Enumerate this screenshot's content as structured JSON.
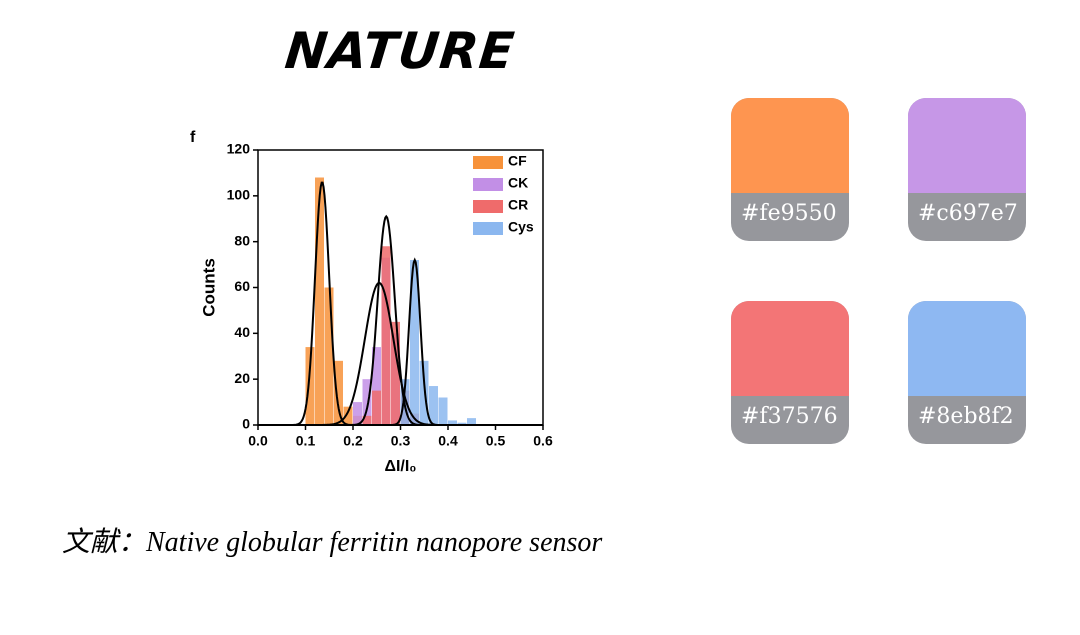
{
  "header": {
    "title": "NATURE"
  },
  "chart_data": {
    "type": "histogram",
    "panel_label": "f",
    "x_label": "ΔI/I₀",
    "y_label": "Counts",
    "xlim": [
      0,
      0.6
    ],
    "ylim": [
      0,
      120
    ],
    "xticks": [
      {
        "value": 0,
        "label": "0.0"
      },
      0.1,
      0.2,
      0.3,
      0.4,
      0.5,
      0.6
    ],
    "yticks": [
      0,
      20,
      40,
      60,
      80,
      100,
      120
    ],
    "legend": "upper right",
    "series": [
      {
        "name": "CF",
        "color": "#f7923a",
        "bins": [
          0.1,
          0.12,
          0.14,
          0.16,
          0.18,
          0.2,
          0.22
        ],
        "values": [
          34,
          108,
          60,
          28,
          8,
          4
        ],
        "fit": [
          0.135,
          106,
          0.015
        ]
      },
      {
        "name": "CK",
        "color": "#c28fe6",
        "bins": [
          0.2,
          0.22,
          0.24,
          0.26,
          0.28,
          0.3,
          0.32,
          0.34
        ],
        "values": [
          10,
          20,
          34,
          73,
          40,
          12,
          4
        ],
        "fit": [
          0.255,
          62,
          0.03
        ]
      },
      {
        "name": "CR",
        "color": "#ef6b6b",
        "bins": [
          0.22,
          0.24,
          0.26,
          0.28,
          0.3,
          0.32,
          0.34
        ],
        "values": [
          4,
          15,
          78,
          45,
          15,
          5
        ],
        "fit": [
          0.27,
          91,
          0.018
        ]
      },
      {
        "name": "Cys",
        "color": "#8bb7ef",
        "bins": [
          0.3,
          0.32,
          0.34,
          0.36,
          0.38,
          0.4,
          0.42,
          0.44,
          0.46
        ],
        "values": [
          20,
          72,
          28,
          17,
          12,
          2,
          1,
          3
        ],
        "fit": [
          0.33,
          72,
          0.012
        ]
      }
    ]
  },
  "swatches": [
    {
      "color": "#fe9550",
      "label": "#fe9550"
    },
    {
      "color": "#c697e7",
      "label": "#c697e7"
    },
    {
      "color": "#f37576",
      "label": "#f37576"
    },
    {
      "color": "#8eb8f2",
      "label": "#8eb8f2"
    }
  ],
  "caption": "文献：Native globular ferritin nanopore sensor"
}
